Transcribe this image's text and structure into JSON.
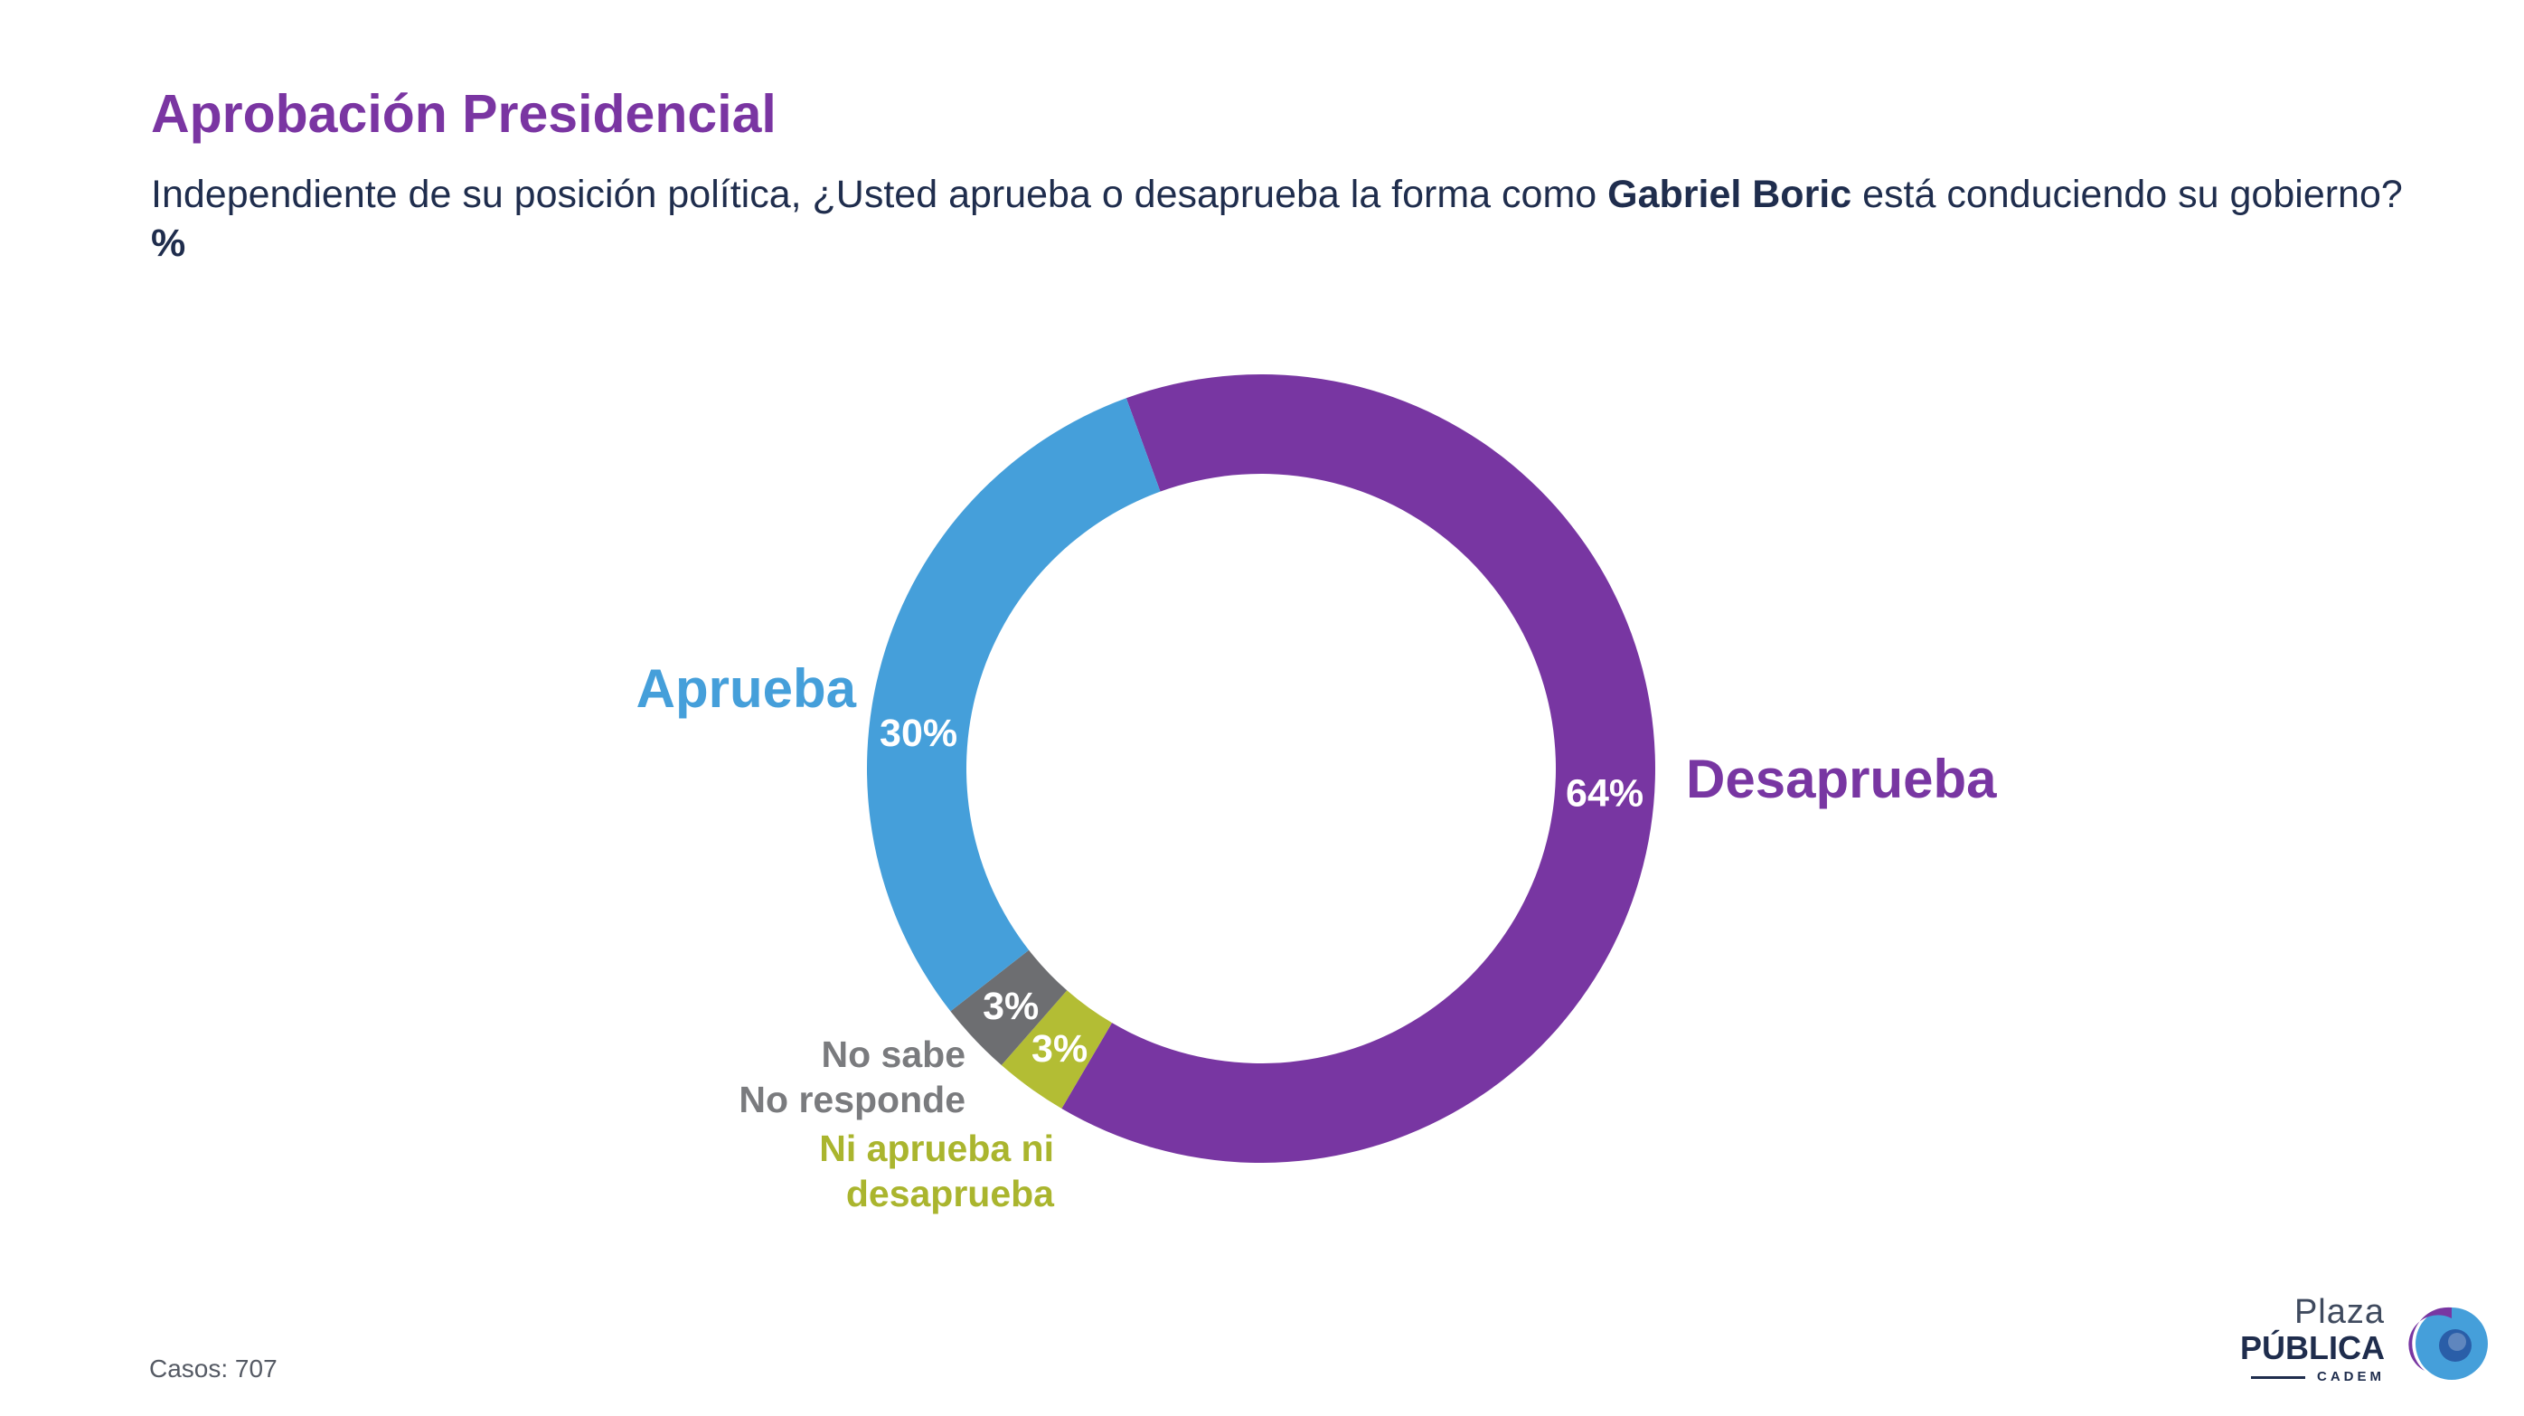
{
  "header": {
    "title": "Aprobación Presidencial",
    "question_part1": "Independiente de su posición política, ¿Usted aprueba o desaprueba la forma como ",
    "question_bold": "Gabriel Boric",
    "question_part2": " está conduciendo su gobierno? ",
    "question_unit": "%"
  },
  "chart_data": {
    "type": "pie",
    "donut": true,
    "series": [
      {
        "name": "Desaprueba",
        "value": 64,
        "label": "64%",
        "color": "#7836a2"
      },
      {
        "name": "Ni aprueba ni desaprueba",
        "value": 3,
        "label": "3%",
        "color": "#b3bd34"
      },
      {
        "name": "No sabe No responde",
        "value": 3,
        "label": "3%",
        "color": "#6d6e71"
      },
      {
        "name": "Aprueba",
        "value": 30,
        "label": "30%",
        "color": "#459fda"
      }
    ],
    "category_labels": {
      "desaprueba": "Desaprueba",
      "ni_line1": "Ni aprueba ni",
      "ni_line2": "desaprueba",
      "ns_line1": "No sabe",
      "ns_line2": "No responde",
      "aprueba": "Aprueba"
    }
  },
  "footer": {
    "casos": "Casos: 707",
    "logo_line1": "Plaza",
    "logo_line2": "PÚBLICA",
    "logo_line3": "CADEM"
  },
  "colors": {
    "title": "#7a35a2",
    "text": "#1f2d4d",
    "aprueba": "#459fda",
    "desaprueba": "#7836a2",
    "ni": "#b3bd34",
    "ns": "#6d6e71"
  }
}
